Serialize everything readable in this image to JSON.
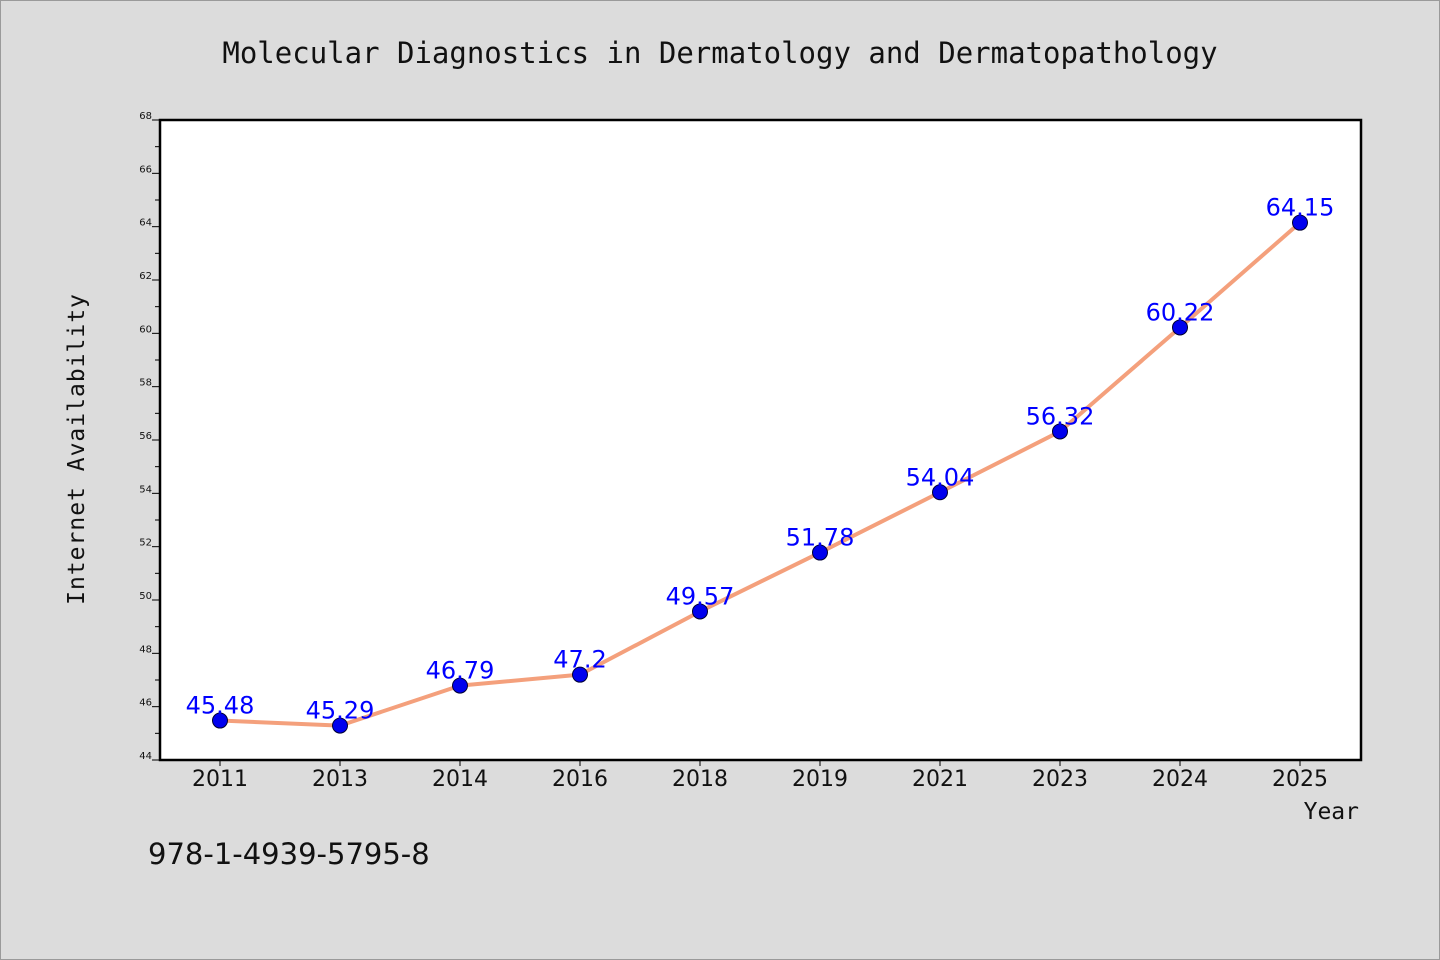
{
  "chart_data": {
    "type": "line",
    "title": "Molecular Diagnostics in Dermatology and Dermatopathology",
    "xlabel": "Year",
    "ylabel": "Internet Availability",
    "categories": [
      "2011",
      "2013",
      "2014",
      "2016",
      "2018",
      "2019",
      "2021",
      "2023",
      "2024",
      "2025"
    ],
    "series": [
      {
        "values": [
          45.48,
          45.29,
          46.79,
          47.2,
          49.57,
          51.78,
          54.04,
          56.32,
          60.22,
          64.15
        ],
        "labels": [
          "45.48",
          "45.29",
          "46.79",
          "47.2",
          "49.57",
          "51.78",
          "54.04",
          "56.32",
          "60.22",
          "64.15"
        ],
        "line_color": "#f4a07c",
        "marker_color": "#0000ee",
        "label_color": "#0000ff"
      }
    ],
    "ylim": [
      44,
      68
    ],
    "yticks": [
      "44",
      "46",
      "48",
      "50",
      "52",
      "54",
      "56",
      "58",
      "60",
      "62",
      "64",
      "66",
      "68"
    ],
    "grid": false,
    "legend": "none"
  },
  "annotation": "978-1-4939-5795-8",
  "colors": {
    "background": "#dcdcdc",
    "plot_background": "#ffffff",
    "axes": "#000000"
  }
}
